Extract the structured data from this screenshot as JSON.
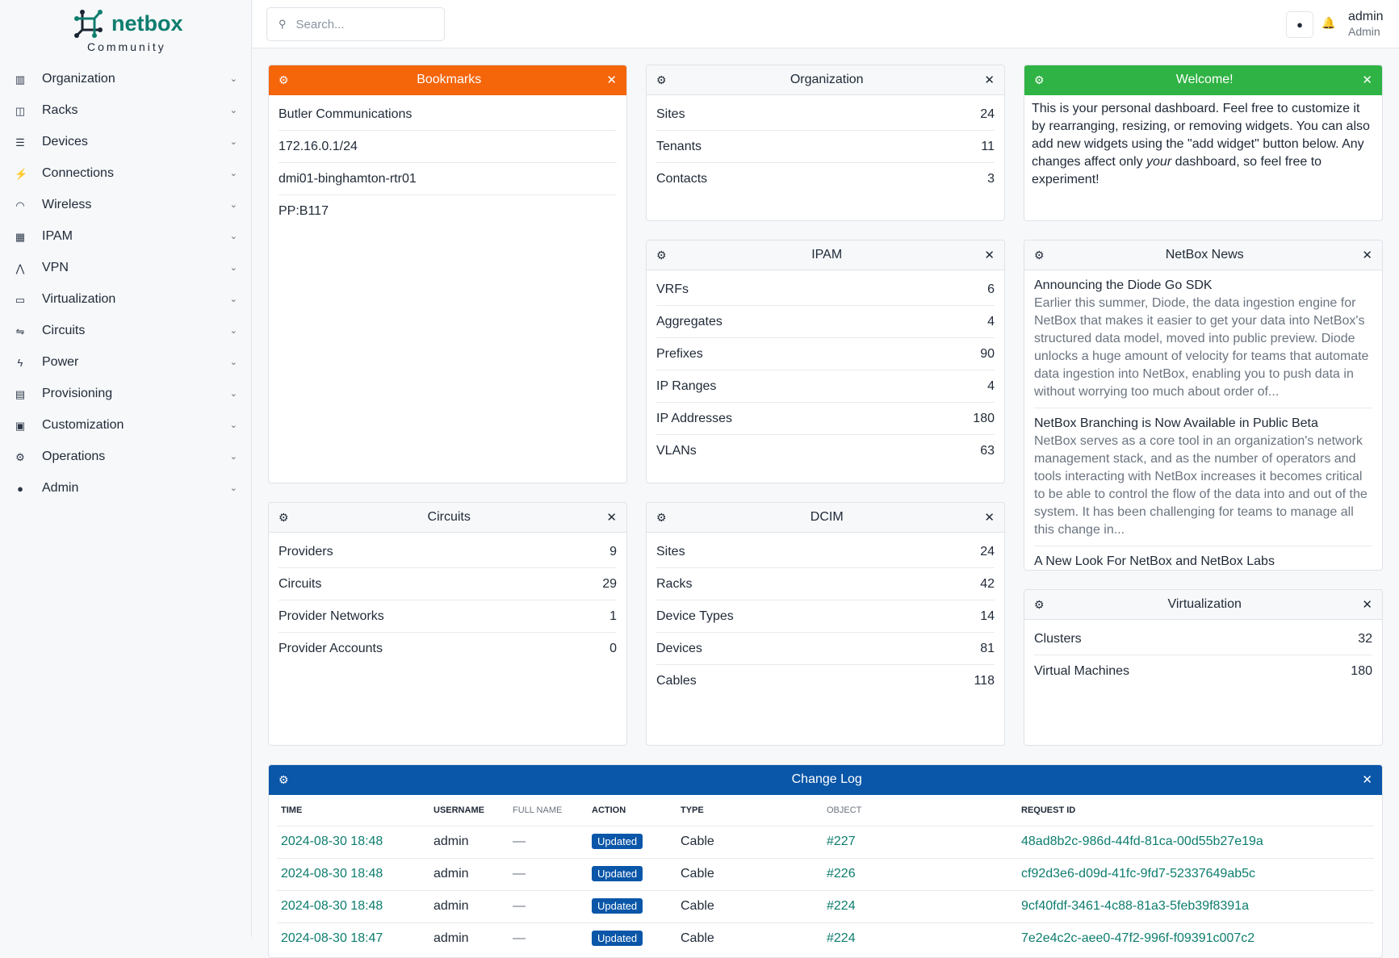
{
  "brand": {
    "name": "netbox",
    "edition": "Community"
  },
  "sidebar": {
    "items": [
      {
        "label": "Organization",
        "icon": "building-icon"
      },
      {
        "label": "Racks",
        "icon": "rack-icon"
      },
      {
        "label": "Devices",
        "icon": "server-icon"
      },
      {
        "label": "Connections",
        "icon": "plug-icon"
      },
      {
        "label": "Wireless",
        "icon": "wifi-icon"
      },
      {
        "label": "IPAM",
        "icon": "ip-icon"
      },
      {
        "label": "VPN",
        "icon": "vpn-icon"
      },
      {
        "label": "Virtualization",
        "icon": "monitor-icon"
      },
      {
        "label": "Circuits",
        "icon": "circuit-icon"
      },
      {
        "label": "Power",
        "icon": "lightning-icon"
      },
      {
        "label": "Provisioning",
        "icon": "file-icon"
      },
      {
        "label": "Customization",
        "icon": "toolbox-icon"
      },
      {
        "label": "Operations",
        "icon": "cogs-icon"
      },
      {
        "label": "Admin",
        "icon": "users-icon"
      }
    ]
  },
  "header": {
    "search_placeholder": "Search...",
    "user": "admin",
    "role": "Admin"
  },
  "bookmarks": {
    "title": "Bookmarks",
    "items": [
      "Butler Communications",
      "172.16.0.1/24",
      "dmi01-binghamton-rtr01",
      "PP:B117"
    ]
  },
  "organization": {
    "title": "Organization",
    "rows": [
      [
        "Sites",
        "24"
      ],
      [
        "Tenants",
        "11"
      ],
      [
        "Contacts",
        "3"
      ]
    ]
  },
  "welcome": {
    "title": "Welcome!",
    "p1": "This is your personal dashboard. Feel free to customize it by rearranging, resizing, or removing widgets. You can also add new widgets using the \"add widget\" button below. Any changes affect only ",
    "em": "your",
    "p2": " dashboard, so feel free to experiment!"
  },
  "ipam": {
    "title": "IPAM",
    "rows": [
      [
        "VRFs",
        "6"
      ],
      [
        "Aggregates",
        "4"
      ],
      [
        "Prefixes",
        "90"
      ],
      [
        "IP Ranges",
        "4"
      ],
      [
        "IP Addresses",
        "180"
      ],
      [
        "VLANs",
        "63"
      ]
    ]
  },
  "news": {
    "title": "NetBox News",
    "items": [
      {
        "title": "Announcing the Diode Go SDK",
        "body": "Earlier this summer, Diode, the data ingestion engine for NetBox that makes it easier to get your data into NetBox's structured data model, moved into public preview. Diode unlocks a huge amount of velocity for teams that automate data ingestion into NetBox, enabling you to push data in without worrying too much about order of..."
      },
      {
        "title": "NetBox Branching is Now Available in Public Beta",
        "body": "NetBox serves as a core tool in an organization's network management stack, and as the number of operators and tools interacting with NetBox increases it becomes critical to be able to control the flow of the data into and out of the system. It has been challenging for teams to manage all this change in..."
      },
      {
        "title": "A New Look For NetBox and NetBox Labs",
        "body": ""
      }
    ]
  },
  "circuits": {
    "title": "Circuits",
    "rows": [
      [
        "Providers",
        "9"
      ],
      [
        "Circuits",
        "29"
      ],
      [
        "Provider Networks",
        "1"
      ],
      [
        "Provider Accounts",
        "0"
      ]
    ]
  },
  "dcim": {
    "title": "DCIM",
    "rows": [
      [
        "Sites",
        "24"
      ],
      [
        "Racks",
        "42"
      ],
      [
        "Device Types",
        "14"
      ],
      [
        "Devices",
        "81"
      ],
      [
        "Cables",
        "118"
      ]
    ]
  },
  "virtualization": {
    "title": "Virtualization",
    "rows": [
      [
        "Clusters",
        "32"
      ],
      [
        "Virtual Machines",
        "180"
      ]
    ]
  },
  "changelog": {
    "title": "Change Log",
    "columns": [
      "TIME",
      "USERNAME",
      "FULL NAME",
      "ACTION",
      "TYPE",
      "OBJECT",
      "REQUEST ID"
    ],
    "rows": [
      [
        "2024-08-30 18:48",
        "admin",
        "—",
        "Updated",
        "Cable",
        "#227",
        "48ad8b2c-986d-44fd-81ca-00d55b27e19a"
      ],
      [
        "2024-08-30 18:48",
        "admin",
        "—",
        "Updated",
        "Cable",
        "#226",
        "cf92d3e6-d09d-41fc-9fd7-52337649ab5c"
      ],
      [
        "2024-08-30 18:48",
        "admin",
        "—",
        "Updated",
        "Cable",
        "#224",
        "9cf40fdf-3461-4c88-81a3-5feb39f8391a"
      ],
      [
        "2024-08-30 18:47",
        "admin",
        "—",
        "Updated",
        "Cable",
        "#224",
        "7e2e4c2c-aee0-47f2-996f-f09391c007c2"
      ]
    ]
  },
  "colors": {
    "accent": "#0e7d6e",
    "bookmarks": "#f5650a",
    "welcome": "#2fb344",
    "changelog": "#0a56a8"
  }
}
